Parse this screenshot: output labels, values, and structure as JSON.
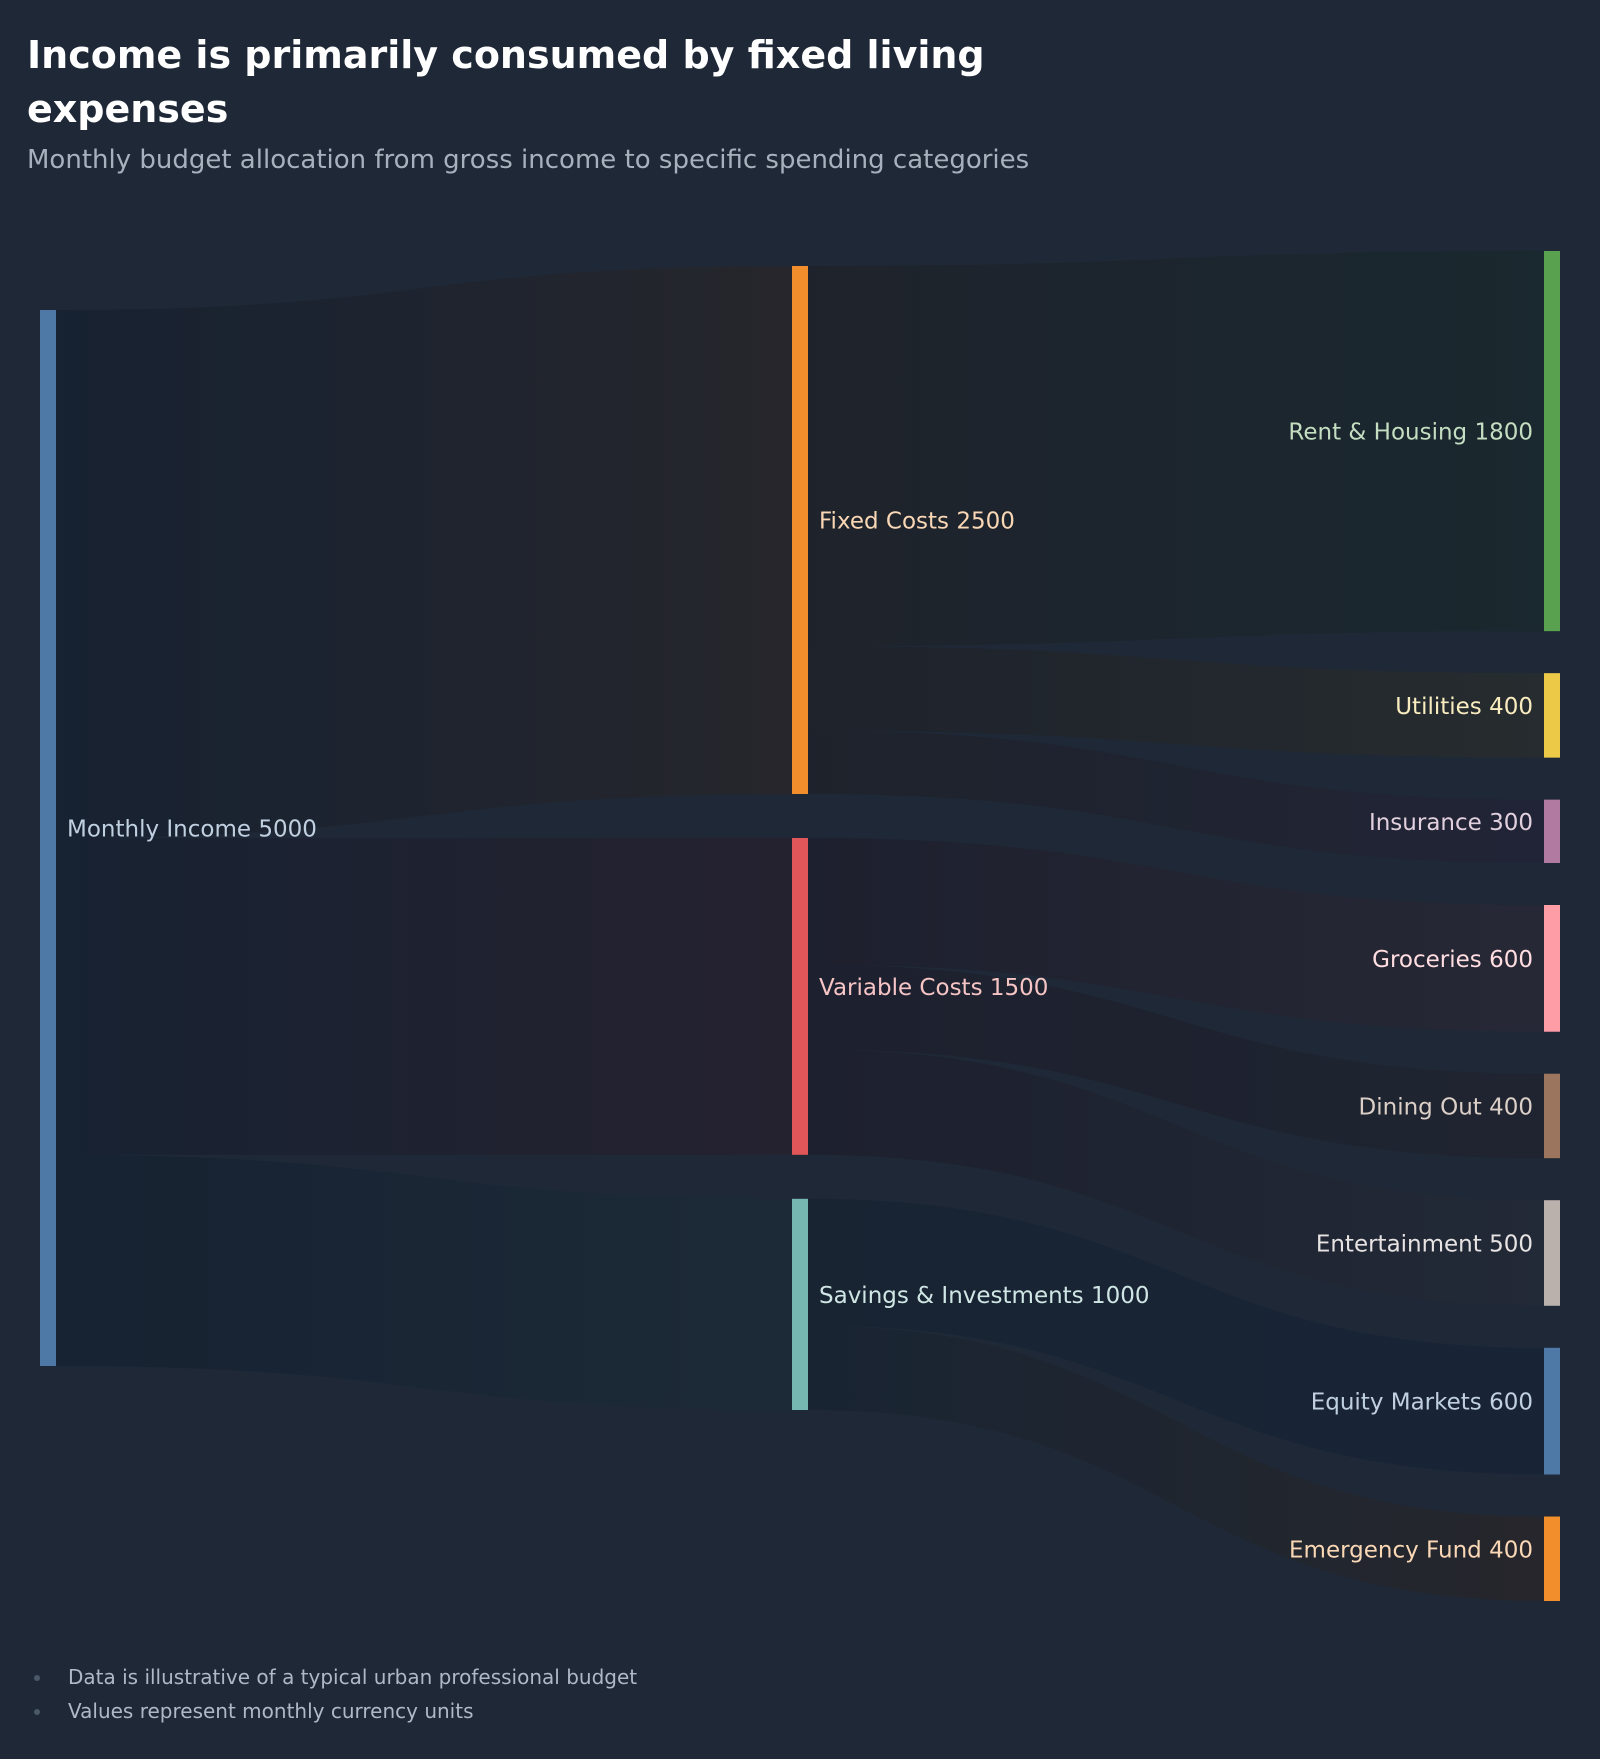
{
  "title": "Income is primarily consumed by fixed living expenses",
  "subtitle": "Monthly budget allocation from gross income to specific spending categories",
  "footnotes": [
    "Data is illustrative of a typical urban professional budget",
    "Values represent monthly currency units"
  ],
  "colors": {
    "background": "#1e2836",
    "link_base": "#131c2b"
  },
  "chart_data": {
    "type": "sankey",
    "nodes": [
      {
        "id": "income",
        "name": "Monthly Income",
        "value": 5000,
        "color": "#4e79a7",
        "column": 0
      },
      {
        "id": "fixed",
        "name": "Fixed Costs",
        "value": 2500,
        "color": "#f28e2b",
        "column": 1
      },
      {
        "id": "variable",
        "name": "Variable Costs",
        "value": 1500,
        "color": "#e15759",
        "column": 1
      },
      {
        "id": "savings",
        "name": "Savings & Investments",
        "value": 1000,
        "color": "#76b7b2",
        "column": 1
      },
      {
        "id": "rent",
        "name": "Rent & Housing",
        "value": 1800,
        "color": "#59a14f",
        "column": 2
      },
      {
        "id": "utilities",
        "name": "Utilities",
        "value": 400,
        "color": "#edc948",
        "column": 2
      },
      {
        "id": "insurance",
        "name": "Insurance",
        "value": 300,
        "color": "#b07aa1",
        "column": 2
      },
      {
        "id": "groceries",
        "name": "Groceries",
        "value": 600,
        "color": "#ff9da7",
        "column": 2
      },
      {
        "id": "dining",
        "name": "Dining Out",
        "value": 400,
        "color": "#9c755f",
        "column": 2
      },
      {
        "id": "entertainment",
        "name": "Entertainment",
        "value": 500,
        "color": "#bab0ac",
        "column": 2
      },
      {
        "id": "equity",
        "name": "Equity Markets",
        "value": 600,
        "color": "#4e79a7",
        "column": 2
      },
      {
        "id": "emergency",
        "name": "Emergency Fund",
        "value": 400,
        "color": "#f28e2b",
        "column": 2
      }
    ],
    "links": [
      {
        "source": "income",
        "target": "fixed",
        "value": 2500
      },
      {
        "source": "income",
        "target": "variable",
        "value": 1500
      },
      {
        "source": "income",
        "target": "savings",
        "value": 1000
      },
      {
        "source": "fixed",
        "target": "rent",
        "value": 1800
      },
      {
        "source": "fixed",
        "target": "utilities",
        "value": 400
      },
      {
        "source": "fixed",
        "target": "insurance",
        "value": 300
      },
      {
        "source": "variable",
        "target": "groceries",
        "value": 600
      },
      {
        "source": "variable",
        "target": "dining",
        "value": 400
      },
      {
        "source": "variable",
        "target": "entertainment",
        "value": 500
      },
      {
        "source": "savings",
        "target": "equity",
        "value": 600
      },
      {
        "source": "savings",
        "target": "emergency",
        "value": 400
      }
    ]
  }
}
